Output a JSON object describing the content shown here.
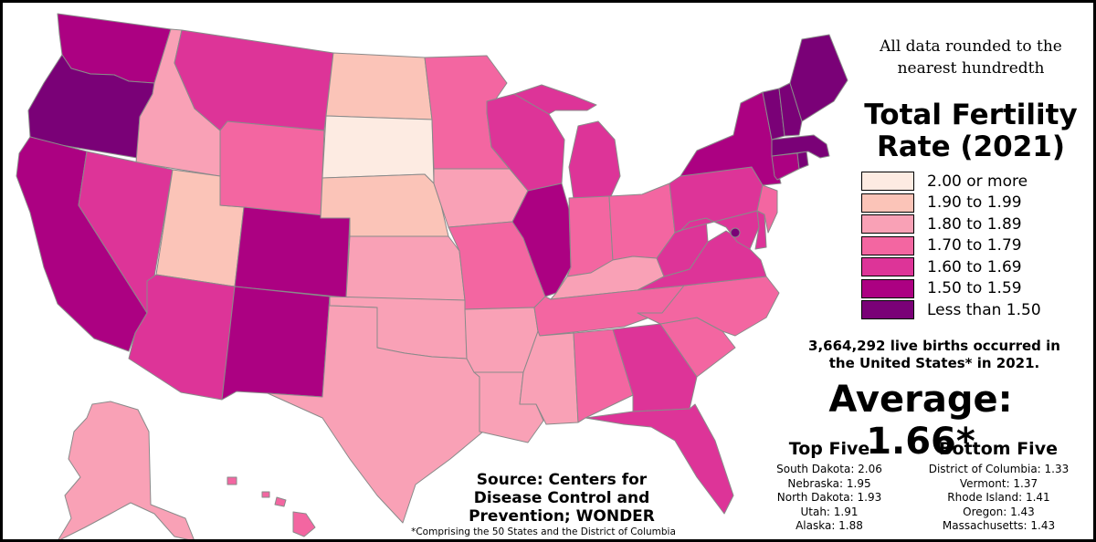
{
  "title": "Total Fertility Rate (2021)",
  "rounding_note": "All data rounded to the nearest hundredth",
  "legend": [
    {
      "label": "2.00 or more",
      "color": "#fdebe2"
    },
    {
      "label": "1.90 to 1.99",
      "color": "#fbc4b8"
    },
    {
      "label": "1.80 to 1.89",
      "color": "#f9a1b6"
    },
    {
      "label": "1.70 to 1.79",
      "color": "#f366a1"
    },
    {
      "label": "1.60 to 1.69",
      "color": "#dd3498"
    },
    {
      "label": "1.50 to 1.59",
      "color": "#ac0182"
    },
    {
      "label": "Less than 1.50",
      "color": "#7a0177"
    }
  ],
  "births_note": "3,664,292 live births occurred in the United States* in 2021.",
  "average": "Average: 1.66*",
  "top_five": {
    "heading": "Top Five",
    "items": [
      "South Dakota: 2.06",
      "Nebraska: 1.95",
      "North Dakota: 1.93",
      "Utah: 1.91",
      "Alaska: 1.88"
    ]
  },
  "bottom_five": {
    "heading": "Bottom Five",
    "items": [
      "District of Columbia: 1.33",
      "Vermont: 1.37",
      "Rhode Island: 1.41",
      "Oregon: 1.43",
      "Massachusetts: 1.43"
    ]
  },
  "source": "Source: Centers for Disease Control and Prevention; WONDER",
  "footnote": "*Comprising the 50 States and the District of Columbia",
  "states": [
    {
      "name": "Washington",
      "bin": 5
    },
    {
      "name": "Oregon",
      "bin": 6
    },
    {
      "name": "California",
      "bin": 5
    },
    {
      "name": "Idaho",
      "bin": 2
    },
    {
      "name": "Nevada",
      "bin": 4
    },
    {
      "name": "Utah",
      "bin": 1
    },
    {
      "name": "Arizona",
      "bin": 4
    },
    {
      "name": "Montana",
      "bin": 4
    },
    {
      "name": "Wyoming",
      "bin": 3
    },
    {
      "name": "Colorado",
      "bin": 5
    },
    {
      "name": "New Mexico",
      "bin": 5
    },
    {
      "name": "North Dakota",
      "bin": 1
    },
    {
      "name": "South Dakota",
      "bin": 0
    },
    {
      "name": "Nebraska",
      "bin": 1
    },
    {
      "name": "Kansas",
      "bin": 2
    },
    {
      "name": "Oklahoma",
      "bin": 2
    },
    {
      "name": "Texas",
      "bin": 2
    },
    {
      "name": "Minnesota",
      "bin": 3
    },
    {
      "name": "Iowa",
      "bin": 2
    },
    {
      "name": "Missouri",
      "bin": 3
    },
    {
      "name": "Arkansas",
      "bin": 2
    },
    {
      "name": "Louisiana",
      "bin": 2
    },
    {
      "name": "Wisconsin",
      "bin": 4
    },
    {
      "name": "Illinois",
      "bin": 5
    },
    {
      "name": "Michigan",
      "bin": 4
    },
    {
      "name": "Indiana",
      "bin": 3
    },
    {
      "name": "Ohio",
      "bin": 3
    },
    {
      "name": "Kentucky",
      "bin": 2
    },
    {
      "name": "Tennessee",
      "bin": 3
    },
    {
      "name": "Mississippi",
      "bin": 2
    },
    {
      "name": "Alabama",
      "bin": 3
    },
    {
      "name": "Georgia",
      "bin": 4
    },
    {
      "name": "Florida",
      "bin": 4
    },
    {
      "name": "South Carolina",
      "bin": 3
    },
    {
      "name": "North Carolina",
      "bin": 3
    },
    {
      "name": "Virginia",
      "bin": 4
    },
    {
      "name": "West Virginia",
      "bin": 4
    },
    {
      "name": "Pennsylvania",
      "bin": 4
    },
    {
      "name": "New York",
      "bin": 5
    },
    {
      "name": "Maryland",
      "bin": 4
    },
    {
      "name": "Delaware",
      "bin": 4
    },
    {
      "name": "New Jersey",
      "bin": 3
    },
    {
      "name": "Connecticut",
      "bin": 5
    },
    {
      "name": "Rhode Island",
      "bin": 6
    },
    {
      "name": "Massachusetts",
      "bin": 6
    },
    {
      "name": "Vermont",
      "bin": 6
    },
    {
      "name": "New Hampshire",
      "bin": 6
    },
    {
      "name": "Maine",
      "bin": 6
    },
    {
      "name": "District of Columbia",
      "bin": 6
    },
    {
      "name": "Alaska",
      "bin": 2
    },
    {
      "name": "Hawaii",
      "bin": 3
    }
  ]
}
